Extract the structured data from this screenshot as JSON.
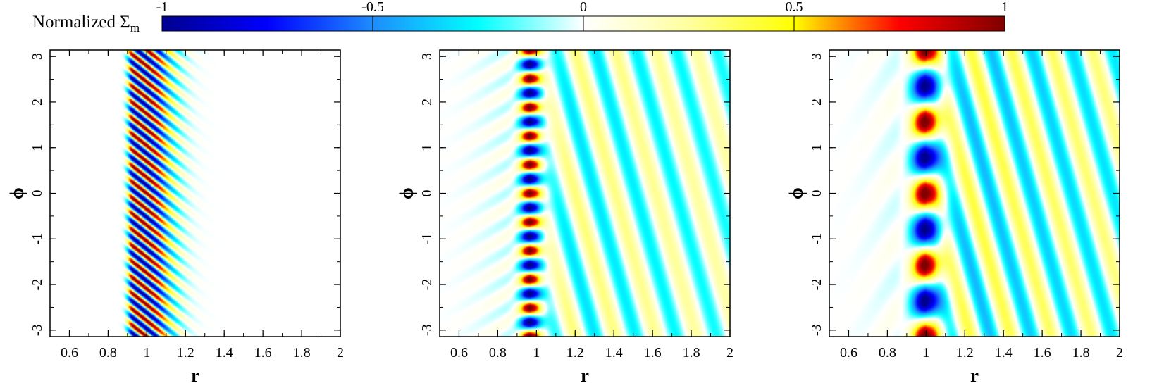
{
  "colorbar": {
    "label_main": "Normalized Σ",
    "label_sub": "m",
    "ticks": [
      "-1",
      "-0.5",
      "0",
      "0.5",
      "1"
    ],
    "range": [
      -1,
      1
    ],
    "colormap": [
      {
        "v": -1.0,
        "color": "#00008f"
      },
      {
        "v": -0.75,
        "color": "#0000ff"
      },
      {
        "v": -0.5,
        "color": "#1e8cff"
      },
      {
        "v": -0.25,
        "color": "#00ffff"
      },
      {
        "v": 0.0,
        "color": "#ffffff"
      },
      {
        "v": 0.25,
        "color": "#ffffa0"
      },
      {
        "v": 0.5,
        "color": "#ffff00"
      },
      {
        "v": 0.75,
        "color": "#ff0000"
      },
      {
        "v": 1.0,
        "color": "#800000"
      }
    ]
  },
  "chart_data": [
    {
      "type": "heatmap",
      "title": "",
      "xlabel": "r",
      "ylabel": "ϕ",
      "xlim": [
        0.5,
        2.0
      ],
      "ylim": [
        -3.14159,
        3.14159
      ],
      "xticks": [
        "0.6",
        "0.8",
        "1",
        "1.2",
        "1.4",
        "1.6",
        "1.8",
        "2"
      ],
      "yticks": [
        "-3",
        "-2",
        "-1",
        "0",
        "1",
        "2",
        "3"
      ],
      "value_range": [
        -1,
        1
      ],
      "pattern": {
        "m": 18,
        "ring_radius": 1.0,
        "lobe_width": 0.05,
        "inner_amplitude": 0.0,
        "outer_amplitude": 0.0,
        "outer_extent": 1.35
      }
    },
    {
      "type": "heatmap",
      "title": "",
      "xlabel": "r",
      "ylabel": "ϕ",
      "xlim": [
        0.5,
        2.0
      ],
      "ylim": [
        -3.14159,
        3.14159
      ],
      "xticks": [
        "0.6",
        "0.8",
        "1",
        "1.2",
        "1.4",
        "1.6",
        "1.8",
        "2"
      ],
      "yticks": [
        "-3",
        "-2",
        "-1",
        "0",
        "1",
        "2",
        "3"
      ],
      "value_range": [
        -1,
        1
      ],
      "pattern": {
        "m": 10,
        "ring_radius": 0.97,
        "lobe_width": 0.055,
        "inner_amplitude": 0.1,
        "outer_amplitude": 0.35,
        "outer_extent": 2.0
      }
    },
    {
      "type": "heatmap",
      "title": "",
      "xlabel": "r",
      "ylabel": "ϕ",
      "xlim": [
        0.5,
        2.0
      ],
      "ylim": [
        -3.14159,
        3.14159
      ],
      "xticks": [
        "0.6",
        "0.8",
        "1",
        "1.2",
        "1.4",
        "1.6",
        "1.8",
        "2"
      ],
      "yticks": [
        "-3",
        "-2",
        "-1",
        "0",
        "1",
        "2",
        "3"
      ],
      "value_range": [
        -1,
        1
      ],
      "pattern": {
        "m": 4,
        "ring_radius": 1.0,
        "lobe_width": 0.075,
        "inner_amplitude": 0.08,
        "outer_amplitude": 0.45,
        "outer_extent": 2.0
      }
    }
  ]
}
